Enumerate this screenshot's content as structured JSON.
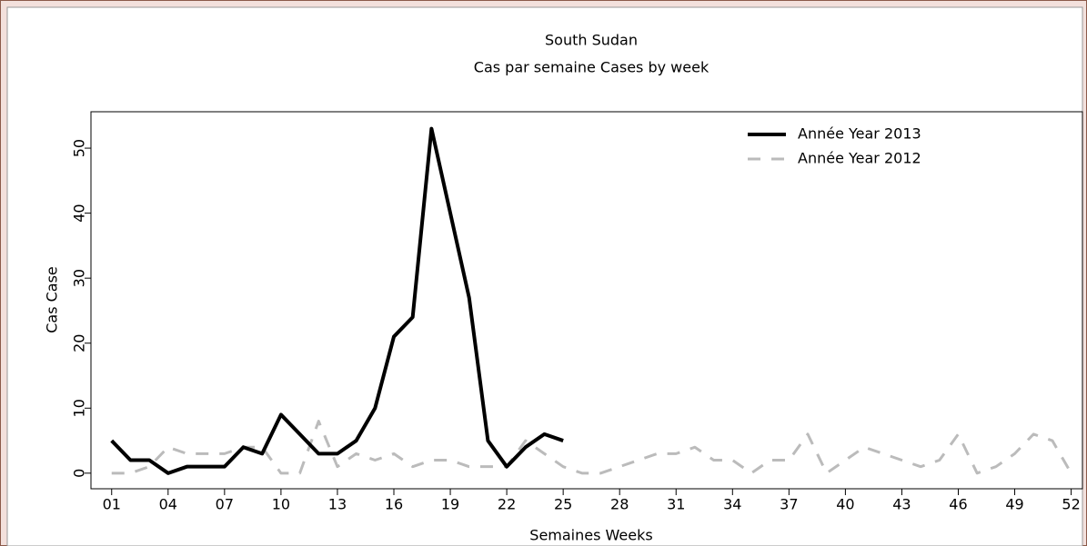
{
  "chart_data": {
    "type": "line",
    "title": "South Sudan",
    "subtitle": "Cas par semaine Cases by week",
    "x_label": "Semaines Weeks",
    "y_label": "Cas Case",
    "x": [
      1,
      2,
      3,
      4,
      5,
      6,
      7,
      8,
      9,
      10,
      11,
      12,
      13,
      14,
      15,
      16,
      17,
      18,
      19,
      20,
      21,
      22,
      23,
      24,
      25,
      26,
      27,
      28,
      29,
      30,
      31,
      32,
      33,
      34,
      35,
      36,
      37,
      38,
      39,
      40,
      41,
      42,
      43,
      44,
      45,
      46,
      47,
      48,
      49,
      50,
      51,
      52
    ],
    "series": [
      {
        "name": "Année Year 2013",
        "color": "#000000",
        "style": "solid",
        "values": [
          5,
          2,
          2,
          0,
          1,
          1,
          1,
          4,
          3,
          9,
          6,
          3,
          3,
          5,
          10,
          21,
          24,
          53,
          40,
          27,
          5,
          1,
          4,
          6,
          5,
          null,
          null,
          null,
          null,
          null,
          null,
          null,
          null,
          null,
          null,
          null,
          null,
          null,
          null,
          null,
          null,
          null,
          null,
          null,
          null,
          null,
          null,
          null,
          null,
          null,
          null,
          null
        ]
      },
      {
        "name": "Année Year 2012",
        "color": "#bbbbbb",
        "style": "dashed",
        "values": [
          0,
          0,
          1,
          4,
          3,
          3,
          3,
          4,
          4,
          0,
          0,
          8,
          1,
          3,
          2,
          3,
          1,
          2,
          2,
          1,
          1,
          1,
          5,
          3,
          1,
          0,
          0,
          1,
          2,
          3,
          3,
          4,
          2,
          2,
          0,
          2,
          2,
          6,
          0,
          2,
          4,
          3,
          2,
          1,
          2,
          6,
          0,
          1,
          3,
          6,
          5,
          0
        ]
      }
    ],
    "xlim": [
      -0.1,
      52.6
    ],
    "ylim": [
      -2.4,
      55.6
    ],
    "xticks": [
      {
        "value": 1,
        "label": "01"
      },
      {
        "value": 4,
        "label": "04"
      },
      {
        "value": 7,
        "label": "07"
      },
      10,
      13,
      16,
      19,
      22,
      25,
      28,
      31,
      34,
      37,
      40,
      43,
      46,
      49,
      52
    ],
    "yticks": [
      0,
      10,
      20,
      30,
      40,
      50
    ],
    "legend": "upper right"
  }
}
